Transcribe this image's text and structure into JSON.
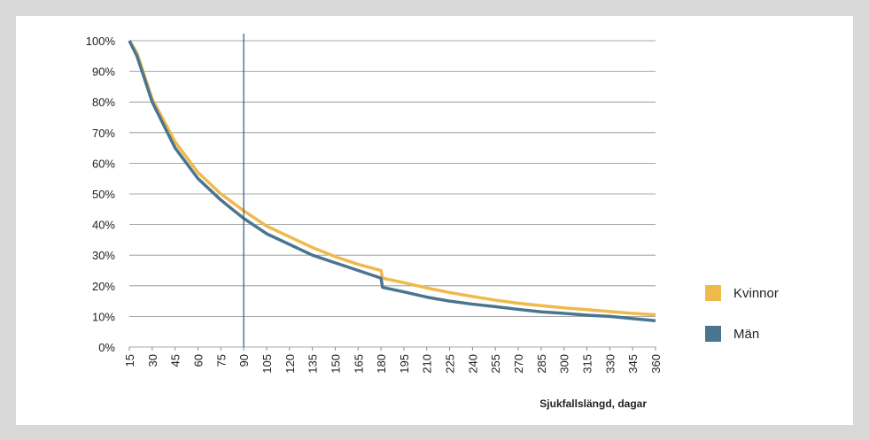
{
  "chart_data": {
    "type": "line",
    "x_label": "Sjukfallslängd, dagar",
    "x": [
      15,
      20,
      30,
      45,
      60,
      75,
      90,
      105,
      120,
      135,
      150,
      165,
      180,
      181,
      195,
      210,
      225,
      240,
      255,
      270,
      285,
      300,
      315,
      330,
      345,
      360
    ],
    "series": [
      {
        "name": "Kvinnor",
        "color": "#f0b94b",
        "values": [
          100,
          96,
          81,
          67,
          57,
          50,
          44.5,
          39.5,
          36,
          32.5,
          29.5,
          27,
          25,
          22.5,
          21,
          19.3,
          17.8,
          16.5,
          15.3,
          14.3,
          13.5,
          12.8,
          12.2,
          11.6,
          11,
          10.5
        ]
      },
      {
        "name": "Män",
        "color": "#4a7590",
        "values": [
          100,
          95,
          80,
          65,
          55,
          48,
          42,
          37,
          33.5,
          30,
          27.5,
          25,
          22.5,
          19.5,
          18,
          16.3,
          15,
          14,
          13.2,
          12.3,
          11.5,
          11,
          10.4,
          10,
          9.3,
          8.6
        ]
      }
    ],
    "xlim": [
      15,
      360
    ],
    "xticks": [
      15,
      30,
      45,
      60,
      75,
      90,
      105,
      120,
      135,
      150,
      165,
      180,
      195,
      210,
      225,
      240,
      255,
      270,
      285,
      300,
      315,
      330,
      345,
      360
    ],
    "ylim": [
      0,
      100
    ],
    "yticks": [
      {
        "value": 0,
        "label": "0%"
      },
      {
        "value": 10,
        "label": "10%"
      },
      {
        "value": 20,
        "label": "20%"
      },
      {
        "value": 30,
        "label": "30%"
      },
      {
        "value": 40,
        "label": "40%"
      },
      {
        "value": 50,
        "label": "50%"
      },
      {
        "value": 60,
        "label": "60%"
      },
      {
        "value": 70,
        "label": "70%"
      },
      {
        "value": 80,
        "label": "80%"
      },
      {
        "value": 90,
        "label": "90%"
      },
      {
        "value": 100,
        "label": "100%"
      }
    ],
    "vline": 90,
    "vline_color": "#2f5a7a",
    "grid": true,
    "legend": "right"
  }
}
